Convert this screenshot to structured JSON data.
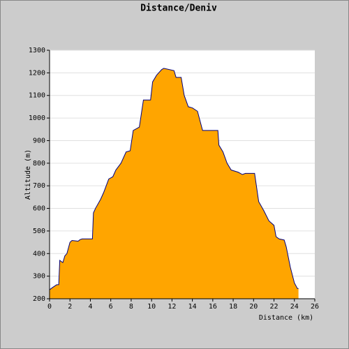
{
  "chart_data": {
    "type": "area",
    "title": "Distance/Deniv",
    "x_label": "Distance (km)",
    "y_label": "Altitude (m)",
    "x": [
      0,
      0.3,
      0.7,
      0.9,
      1.0,
      1.3,
      1.5,
      1.7,
      2.0,
      2.2,
      2.8,
      3.0,
      3.2,
      4.2,
      4.3,
      4.5,
      5.0,
      5.3,
      5.8,
      6.2,
      6.5,
      7.0,
      7.5,
      7.9,
      8.2,
      8.8,
      9.2,
      9.9,
      10.1,
      10.5,
      11.0,
      11.2,
      12.2,
      12.4,
      12.9,
      13.2,
      13.6,
      14.0,
      14.5,
      15.0,
      16.5,
      16.6,
      17.0,
      17.4,
      17.8,
      18.5,
      18.9,
      19.2,
      20.1,
      20.5,
      21.0,
      21.5,
      22.0,
      22.2,
      22.5,
      23.0,
      23.2,
      23.6,
      24.0,
      24.3,
      24.4
    ],
    "values": [
      240,
      250,
      262,
      262,
      370,
      360,
      390,
      400,
      450,
      458,
      455,
      462,
      465,
      465,
      580,
      600,
      640,
      670,
      730,
      740,
      770,
      800,
      850,
      855,
      945,
      960,
      1080,
      1080,
      1160,
      1190,
      1215,
      1220,
      1210,
      1180,
      1180,
      1100,
      1050,
      1045,
      1030,
      945,
      945,
      880,
      850,
      800,
      770,
      760,
      750,
      755,
      755,
      630,
      590,
      545,
      525,
      475,
      465,
      460,
      430,
      340,
      270,
      245,
      245
    ],
    "fill_color": "#ffa500",
    "line_color": "#000080",
    "xlim": [
      0,
      26
    ],
    "xticks": [
      0,
      2,
      4,
      6,
      8,
      10,
      12,
      14,
      16,
      18,
      20,
      22,
      24,
      26
    ],
    "ylim": [
      200,
      1300
    ],
    "yticks": [
      200,
      300,
      400,
      500,
      600,
      700,
      800,
      900,
      1000,
      1100,
      1200,
      1300
    ],
    "grid": true
  }
}
